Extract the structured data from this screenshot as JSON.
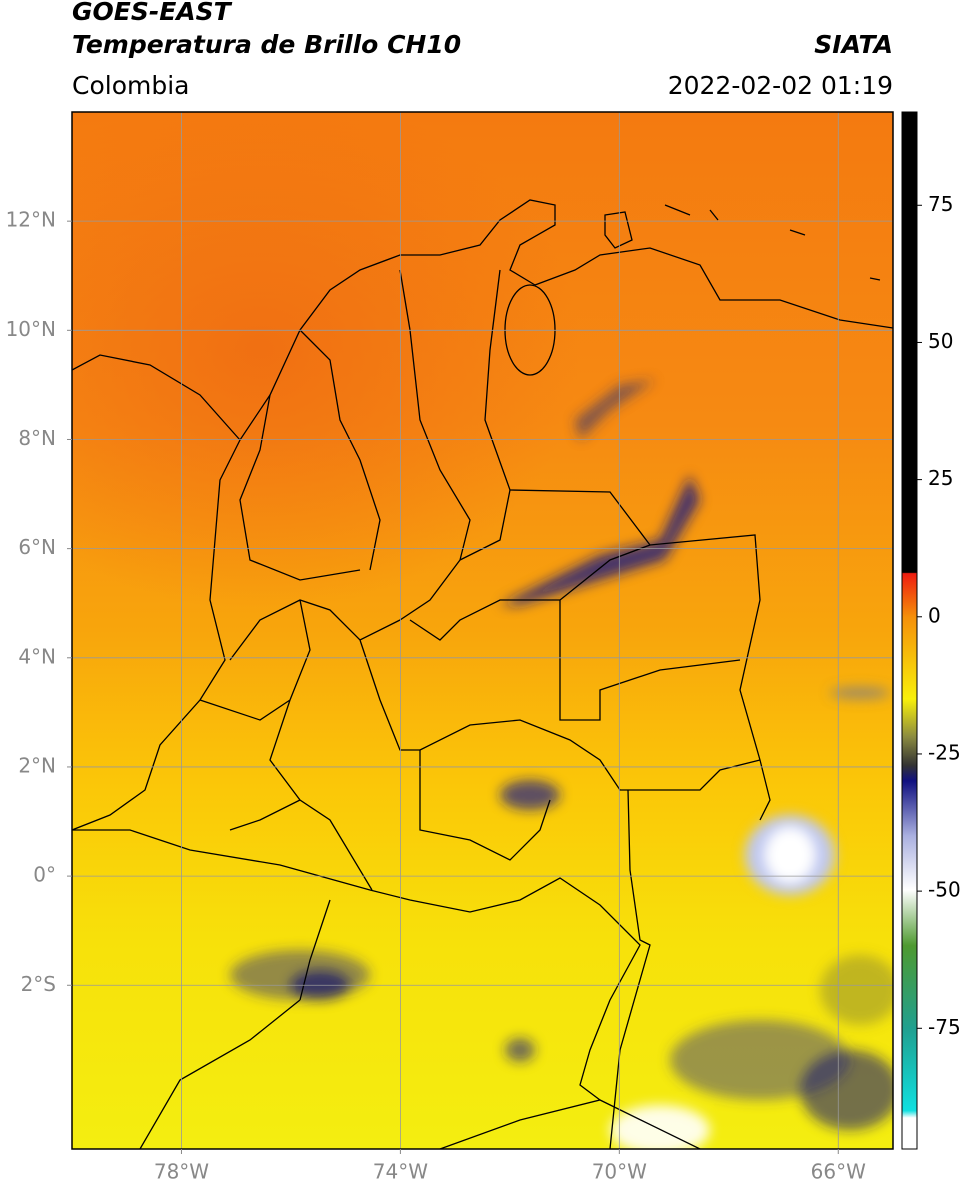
{
  "header": {
    "title": "GOES-EAST",
    "subtitle": "Temperatura de Brillo CH10",
    "source": "SIATA",
    "region": "Colombia",
    "datetime": "2022-02-02 01:19"
  },
  "map": {
    "xlim": [
      -80,
      -65
    ],
    "ylim": [
      -5,
      14
    ],
    "xticks": [
      {
        "value": -78,
        "label": "78°W"
      },
      {
        "value": -74,
        "label": "74°W"
      },
      {
        "value": -70,
        "label": "70°W"
      },
      {
        "value": -66,
        "label": "66°W"
      }
    ],
    "yticks": [
      {
        "value": 12,
        "label": "12°N"
      },
      {
        "value": 10,
        "label": "10°N"
      },
      {
        "value": 8,
        "label": "8°N"
      },
      {
        "value": 6,
        "label": "6°N"
      },
      {
        "value": 4,
        "label": "4°N"
      },
      {
        "value": 2,
        "label": "2°N"
      },
      {
        "value": 0,
        "label": "0°"
      },
      {
        "value": -2,
        "label": "2°S"
      }
    ],
    "grid": true
  },
  "colorbar": {
    "clim": [
      -97,
      92
    ],
    "ticks": [
      75,
      50,
      25,
      0,
      -25,
      -50,
      -75
    ]
  }
}
